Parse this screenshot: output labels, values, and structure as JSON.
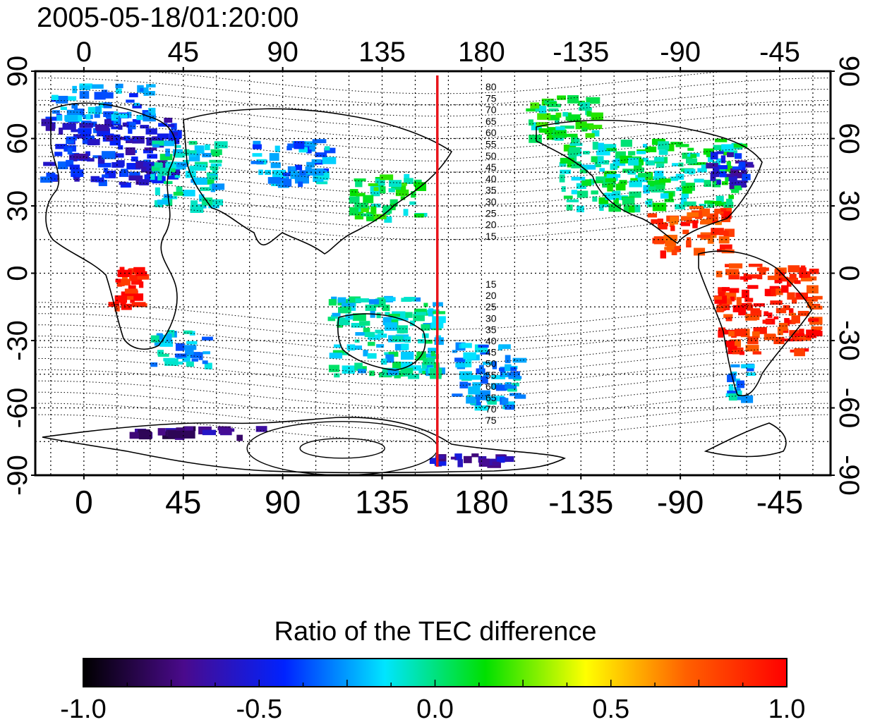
{
  "title": "2005-05-18/01:20:00",
  "map": {
    "lon_range": [
      -22,
      338
    ],
    "lat_range": [
      -90,
      90
    ],
    "lon_ticks": [
      0,
      45,
      90,
      135,
      180,
      225,
      270,
      315
    ],
    "lon_labels": [
      "0",
      "45",
      "90",
      "135",
      "180",
      "-135",
      "-90",
      "-45"
    ],
    "lat_ticks": [
      90,
      60,
      30,
      0,
      -30,
      -60,
      -90
    ],
    "lat_labels": [
      "90",
      "60",
      "30",
      "0",
      "-30",
      "-60",
      "-90"
    ],
    "grid": true,
    "grid_step_deg": 15,
    "terminator_lon": 160,
    "terminator_color": "#e8141b",
    "north_contour_labels": [
      "80",
      "75",
      "70",
      "65",
      "60",
      "55",
      "50",
      "45",
      "40",
      "35",
      "30",
      "25",
      "20",
      "15"
    ],
    "south_contour_labels": [
      "15",
      "20",
      "25",
      "30",
      "35",
      "40",
      "45",
      "50",
      "55",
      "60",
      "65",
      "70",
      "75"
    ]
  },
  "colorbar": {
    "title": "Ratio of the TEC difference",
    "min": -1.0,
    "max": 1.0,
    "tick_values": [
      -1.0,
      -0.5,
      0.0,
      0.5,
      1.0
    ],
    "tick_labels": [
      "-1.0",
      "-0.5",
      "0.0",
      "0.5",
      "1.0"
    ],
    "stops": [
      "#000000",
      "#4a0a8c",
      "#0022ff",
      "#00e5ff",
      "#00e000",
      "#ffff00",
      "#ff6000",
      "#ff0000"
    ]
  },
  "chart_data": {
    "type": "heatmap",
    "title": "2005-05-18/01:20:00",
    "value_range": [
      -1.0,
      1.0
    ],
    "regions": [
      {
        "lon": [
          -20,
          40
        ],
        "lat": [
          40,
          70
        ],
        "value": -0.5
      },
      {
        "lon": [
          30,
          60
        ],
        "lat": [
          30,
          60
        ],
        "value": -0.1
      },
      {
        "lon": [
          -15,
          30
        ],
        "lat": [
          70,
          85
        ],
        "value": -0.3
      },
      {
        "lon": [
          10,
          25
        ],
        "lat": [
          -15,
          5
        ],
        "value": 0.9
      },
      {
        "lon": [
          30,
          55
        ],
        "lat": [
          -40,
          -25
        ],
        "value": -0.2
      },
      {
        "lon": [
          75,
          110
        ],
        "lat": [
          40,
          60
        ],
        "value": -0.25
      },
      {
        "lon": [
          120,
          150
        ],
        "lat": [
          25,
          45
        ],
        "value": 0.05
      },
      {
        "lon": [
          110,
          160
        ],
        "lat": [
          -45,
          -10
        ],
        "value": -0.1
      },
      {
        "lon": [
          165,
          195
        ],
        "lat": [
          -60,
          -30
        ],
        "value": -0.2
      },
      {
        "lon": [
          200,
          230
        ],
        "lat": [
          60,
          80
        ],
        "value": 0.05
      },
      {
        "lon": [
          215,
          295
        ],
        "lat": [
          30,
          60
        ],
        "value": 0.0
      },
      {
        "lon": [
          280,
          300
        ],
        "lat": [
          40,
          55
        ],
        "value": -0.55
      },
      {
        "lon": [
          255,
          290
        ],
        "lat": [
          10,
          30
        ],
        "value": 0.85
      },
      {
        "lon": [
          285,
          330
        ],
        "lat": [
          -35,
          5
        ],
        "value": 0.9
      },
      {
        "lon": [
          290,
          300
        ],
        "lat": [
          -55,
          -40
        ],
        "value": -0.2
      },
      {
        "lon": [
          20,
          90
        ],
        "lat": [
          -72,
          -68
        ],
        "value": -0.7
      },
      {
        "lon": [
          150,
          190
        ],
        "lat": [
          -85,
          -80
        ],
        "value": -0.65
      }
    ]
  }
}
